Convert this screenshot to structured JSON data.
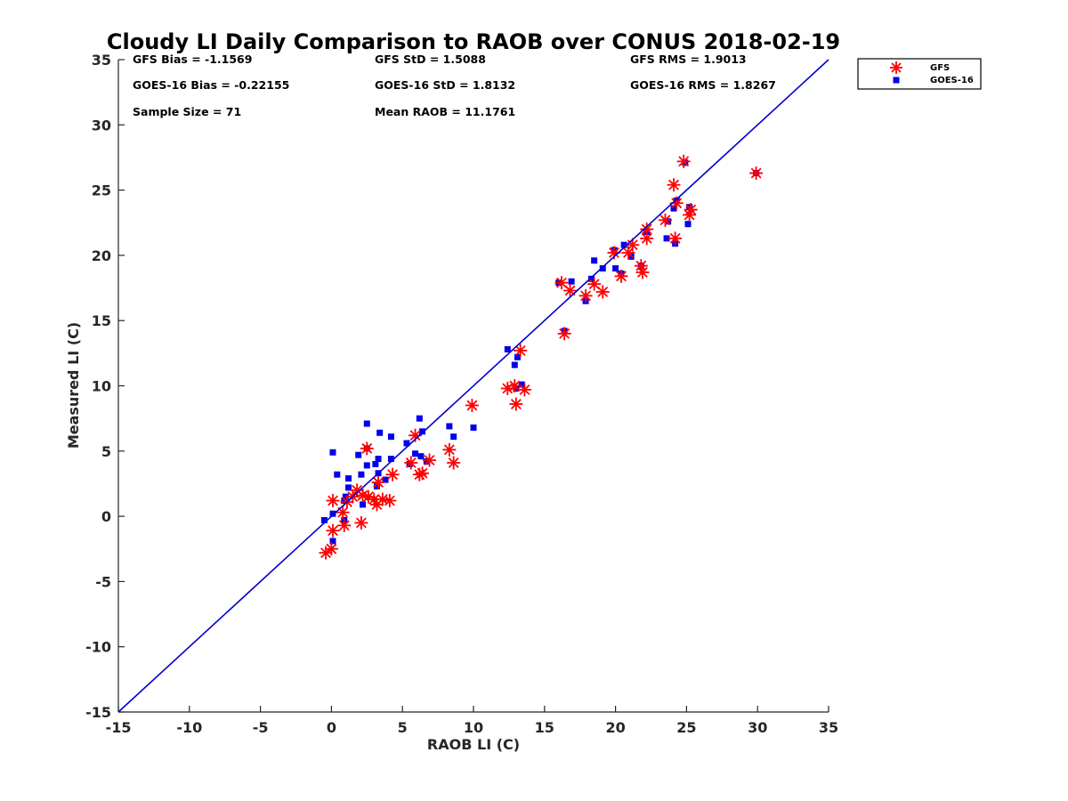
{
  "chart_data": {
    "type": "scatter",
    "title": "Cloudy LI Daily Comparison to RAOB over CONUS 2018-02-19",
    "xlabel": "RAOB LI (C)",
    "ylabel": "Measured LI (C)",
    "xlim": [
      -15,
      35
    ],
    "ylim": [
      -15,
      35
    ],
    "xticks": [
      "-15",
      "-10",
      "-5",
      "0",
      "5",
      "10",
      "15",
      "20",
      "25",
      "30",
      "35"
    ],
    "yticks": [
      "-15",
      "-10",
      "-5",
      "0",
      "5",
      "10",
      "15",
      "20",
      "25",
      "30",
      "35"
    ],
    "grid": false,
    "legend_position": "outside-top-right",
    "reference_line": {
      "from": [
        -15,
        -15
      ],
      "to": [
        35,
        35
      ],
      "color": "#0000cc"
    },
    "stats": [
      "GFS Bias = -1.1569",
      "GFS StD = 1.5088",
      "GFS RMS = 1.9013",
      "GOES-16 Bias = -0.22155",
      "GOES-16 StD = 1.8132",
      "GOES-16 RMS = 1.8267",
      "Sample Size = 71",
      "Mean RAOB = 11.1761"
    ],
    "series": [
      {
        "name": "GFS",
        "marker": "asterisk",
        "color": "#ff0000",
        "points": [
          [
            -0.4,
            -2.8
          ],
          [
            0.0,
            -2.5
          ],
          [
            0.1,
            -1.1
          ],
          [
            0.9,
            -0.7
          ],
          [
            2.1,
            -0.5
          ],
          [
            0.1,
            1.2
          ],
          [
            0.8,
            0.3
          ],
          [
            1.1,
            1.1
          ],
          [
            1.5,
            1.5
          ],
          [
            1.8,
            2.0
          ],
          [
            2.2,
            1.6
          ],
          [
            2.6,
            1.5
          ],
          [
            3.0,
            1.3
          ],
          [
            3.2,
            0.9
          ],
          [
            3.6,
            1.3
          ],
          [
            4.1,
            1.2
          ],
          [
            4.3,
            3.2
          ],
          [
            3.3,
            2.6
          ],
          [
            2.5,
            5.2
          ],
          [
            5.6,
            4.1
          ],
          [
            5.9,
            6.2
          ],
          [
            6.2,
            3.2
          ],
          [
            6.4,
            3.3
          ],
          [
            6.9,
            4.3
          ],
          [
            8.3,
            5.1
          ],
          [
            8.6,
            4.1
          ],
          [
            9.9,
            8.5
          ],
          [
            12.4,
            9.8
          ],
          [
            12.9,
            10.0
          ],
          [
            13.0,
            8.6
          ],
          [
            13.3,
            12.7
          ],
          [
            13.6,
            9.7
          ],
          [
            16.2,
            17.9
          ],
          [
            16.4,
            14.0
          ],
          [
            16.8,
            17.3
          ],
          [
            17.9,
            16.9
          ],
          [
            18.5,
            17.8
          ],
          [
            19.1,
            17.2
          ],
          [
            19.9,
            20.2
          ],
          [
            20.4,
            18.4
          ],
          [
            20.9,
            20.2
          ],
          [
            21.2,
            20.8
          ],
          [
            21.8,
            19.2
          ],
          [
            21.9,
            18.7
          ],
          [
            22.2,
            21.3
          ],
          [
            22.2,
            22.0
          ],
          [
            23.5,
            22.7
          ],
          [
            24.1,
            25.4
          ],
          [
            24.2,
            21.3
          ],
          [
            24.3,
            24.0
          ],
          [
            24.8,
            27.2
          ],
          [
            25.2,
            23.1
          ],
          [
            25.3,
            23.5
          ],
          [
            29.9,
            26.3
          ]
        ]
      },
      {
        "name": "GOES-16",
        "marker": "square",
        "color": "#0000ee",
        "points": [
          [
            -0.5,
            -0.3
          ],
          [
            0.1,
            -1.9
          ],
          [
            0.1,
            0.2
          ],
          [
            0.1,
            4.9
          ],
          [
            0.4,
            3.2
          ],
          [
            0.9,
            -0.3
          ],
          [
            0.9,
            1.2
          ],
          [
            1.0,
            1.5
          ],
          [
            1.2,
            2.2
          ],
          [
            1.2,
            2.9
          ],
          [
            1.9,
            4.7
          ],
          [
            2.1,
            3.2
          ],
          [
            2.2,
            0.9
          ],
          [
            2.5,
            3.9
          ],
          [
            2.5,
            7.1
          ],
          [
            2.5,
            5.2
          ],
          [
            3.1,
            4.0
          ],
          [
            3.2,
            2.3
          ],
          [
            3.3,
            3.3
          ],
          [
            3.3,
            4.4
          ],
          [
            3.4,
            6.4
          ],
          [
            3.8,
            2.8
          ],
          [
            4.2,
            4.4
          ],
          [
            4.2,
            6.1
          ],
          [
            5.3,
            5.6
          ],
          [
            5.5,
            4.0
          ],
          [
            5.9,
            4.8
          ],
          [
            6.2,
            7.5
          ],
          [
            6.3,
            4.6
          ],
          [
            6.4,
            6.5
          ],
          [
            6.7,
            4.2
          ],
          [
            8.3,
            6.9
          ],
          [
            8.6,
            6.1
          ],
          [
            10.0,
            6.8
          ],
          [
            12.4,
            12.8
          ],
          [
            12.9,
            11.6
          ],
          [
            13.0,
            9.8
          ],
          [
            13.1,
            12.2
          ],
          [
            13.4,
            10.1
          ],
          [
            16.4,
            14.2
          ],
          [
            16.0,
            17.9
          ],
          [
            16.9,
            18.0
          ],
          [
            17.9,
            16.5
          ],
          [
            18.3,
            18.2
          ],
          [
            18.5,
            19.6
          ],
          [
            19.1,
            19.0
          ],
          [
            19.9,
            20.4
          ],
          [
            20.0,
            19.0
          ],
          [
            20.4,
            18.6
          ],
          [
            20.6,
            20.8
          ],
          [
            21.1,
            19.9
          ],
          [
            21.8,
            19.2
          ],
          [
            22.2,
            21.8
          ],
          [
            23.6,
            21.3
          ],
          [
            23.7,
            22.6
          ],
          [
            24.1,
            23.6
          ],
          [
            24.2,
            20.9
          ],
          [
            24.3,
            24.2
          ],
          [
            24.9,
            27.1
          ],
          [
            25.1,
            22.4
          ],
          [
            25.2,
            23.7
          ],
          [
            29.9,
            26.3
          ]
        ]
      }
    ]
  }
}
